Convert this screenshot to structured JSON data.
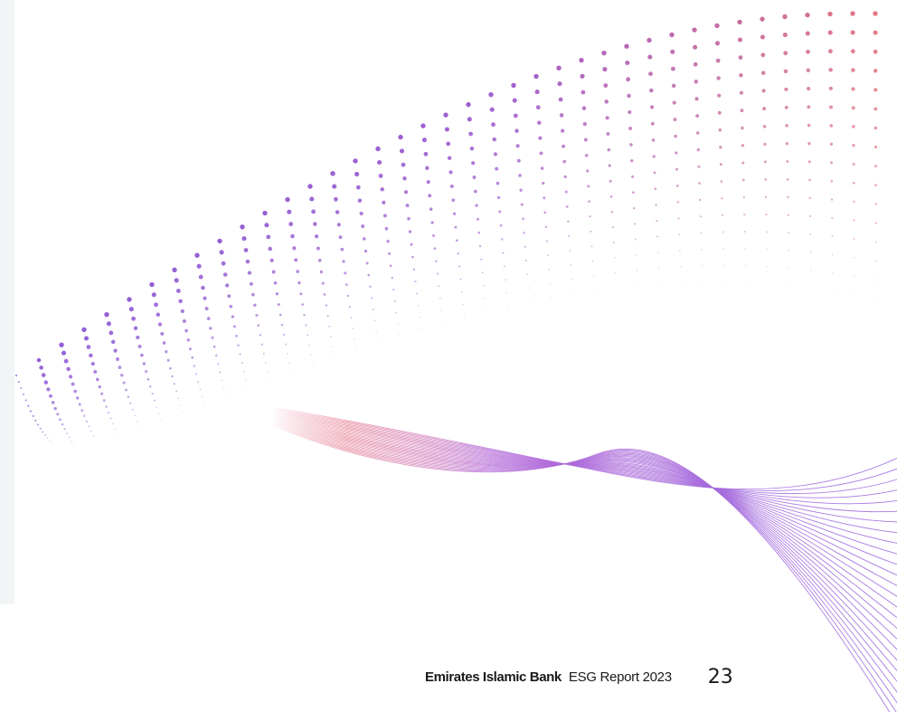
{
  "footer": {
    "brand": "Emirates Islamic Bank",
    "report": "ESG Report 2023",
    "page_number": "23"
  },
  "colors": {
    "side_panel": "#f2f5f5",
    "dot_purple": "#8f5fd6",
    "dot_pink": "#e3787f",
    "wave_purple": "#9a6ae0",
    "wave_pink": "#e0657f",
    "text": "#1a1a1a"
  }
}
